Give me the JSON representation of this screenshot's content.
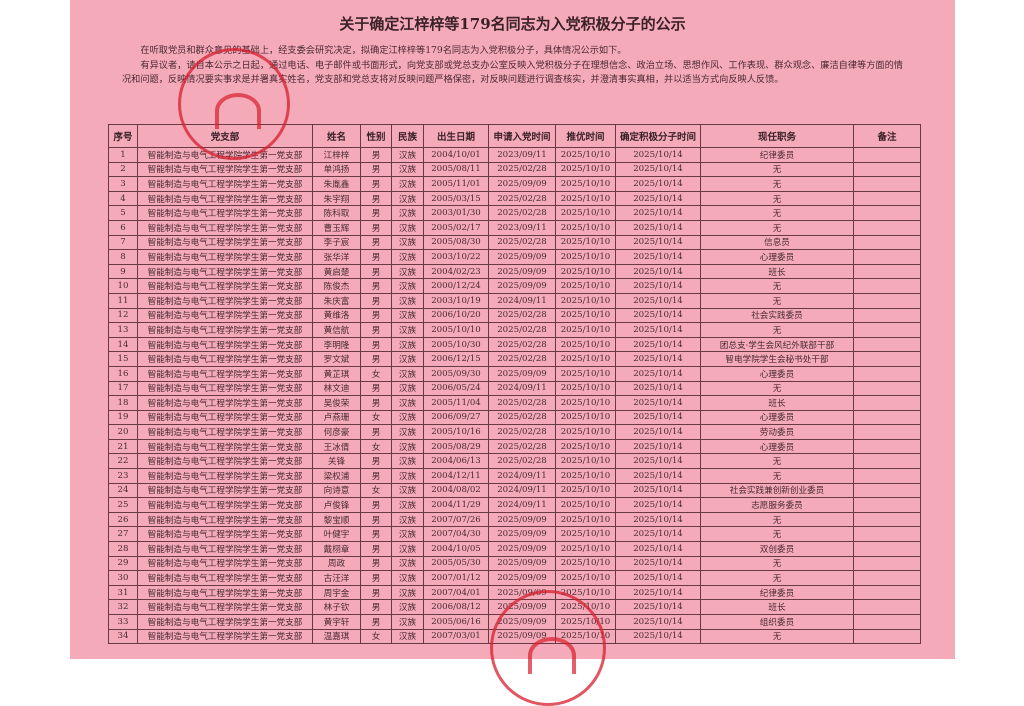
{
  "title": "关于确定江梓梓等179名同志为入党积极分子的公示",
  "intro": [
    "在听取党员和群众意见的基础上，经支委会研究决定，拟确定江梓梓等179名同志为入党积极分子，具体情况公示如下。",
    "有异议者，请自本公示之日起，通过电话、电子邮件或书面形式，向党支部或党总支办公室反映入党积极分子在理想信念、政治立场、思想作风、工作表现、群众观念、廉洁自律等方面的情况和问题，反映情况要实事求是并署真实姓名，党支部和党总支将对反映问题严格保密，对反映问题进行调查核实，并澄清事实真相，并以适当方式向反映人反馈。"
  ],
  "colors": {
    "paper": "#f4aab9",
    "stamp": "#d71e2d"
  },
  "table": {
    "headers": [
      "序号",
      "党支部",
      "姓名",
      "性别",
      "民族",
      "出生日期",
      "申请入党时间",
      "推优时间",
      "确定积极分子时间",
      "现任职务",
      "备注"
    ],
    "branch": "智能制造与电气工程学院学生第一党支部",
    "ethnicity": "汉族",
    "recommend_date": "2025/10/10",
    "confirm_date": "2025/10/14",
    "rows": [
      [
        "1",
        "江梓梓",
        "男",
        "2004/10/01",
        "2023/09/11",
        "纪律委员"
      ],
      [
        "2",
        "单鸿扬",
        "男",
        "2005/08/11",
        "2025/02/28",
        "无"
      ],
      [
        "3",
        "朱胤鑫",
        "男",
        "2005/11/01",
        "2025/09/09",
        "无"
      ],
      [
        "4",
        "朱宇翔",
        "男",
        "2005/03/15",
        "2025/02/28",
        "无"
      ],
      [
        "5",
        "陈科取",
        "男",
        "2003/01/30",
        "2025/02/28",
        "无"
      ],
      [
        "6",
        "曹玉辉",
        "男",
        "2005/02/17",
        "2023/09/11",
        "无"
      ],
      [
        "7",
        "李子宸",
        "男",
        "2005/08/30",
        "2025/02/28",
        "信息员"
      ],
      [
        "8",
        "张华洋",
        "男",
        "2003/10/22",
        "2025/09/09",
        "心理委员"
      ],
      [
        "9",
        "黄启楚",
        "男",
        "2004/02/23",
        "2025/09/09",
        "班长"
      ],
      [
        "10",
        "陈俊杰",
        "男",
        "2000/12/24",
        "2025/09/09",
        "无"
      ],
      [
        "11",
        "朱庆富",
        "男",
        "2003/10/19",
        "2024/09/11",
        "无"
      ],
      [
        "12",
        "黄维洛",
        "男",
        "2006/10/20",
        "2025/02/28",
        "社会实践委员"
      ],
      [
        "13",
        "黄信航",
        "男",
        "2005/10/10",
        "2025/02/28",
        "无"
      ],
      [
        "14",
        "李明隆",
        "男",
        "2005/10/30",
        "2025/02/28",
        "团总支·学生会风纪外联部干部"
      ],
      [
        "15",
        "罗文斌",
        "男",
        "2006/12/15",
        "2025/02/28",
        "智电学院学生会秘书处干部"
      ],
      [
        "16",
        "黄芷琪",
        "女",
        "2005/09/30",
        "2025/09/09",
        "心理委员"
      ],
      [
        "17",
        "林文迪",
        "男",
        "2006/05/24",
        "2024/09/11",
        "无"
      ],
      [
        "18",
        "吴俊荣",
        "男",
        "2005/11/04",
        "2025/02/28",
        "班长"
      ],
      [
        "19",
        "卢燕珊",
        "女",
        "2006/09/27",
        "2025/02/28",
        "心理委员"
      ],
      [
        "20",
        "何彦豪",
        "男",
        "2005/10/16",
        "2025/02/28",
        "劳动委员"
      ],
      [
        "21",
        "王冰倩",
        "女",
        "2005/08/29",
        "2025/02/28",
        "心理委员"
      ],
      [
        "22",
        "关锋",
        "男",
        "2004/06/13",
        "2025/02/28",
        "无"
      ],
      [
        "23",
        "梁权浦",
        "男",
        "2004/12/11",
        "2024/09/11",
        "无"
      ],
      [
        "24",
        "向诗意",
        "女",
        "2004/08/02",
        "2024/09/11",
        "社会实践兼创新创业委员"
      ],
      [
        "25",
        "卢俊锋",
        "男",
        "2004/11/29",
        "2024/09/11",
        "志愿服务委员"
      ],
      [
        "26",
        "黎宝顺",
        "男",
        "2007/07/26",
        "2025/09/09",
        "无"
      ],
      [
        "27",
        "叶健宇",
        "男",
        "2007/04/30",
        "2025/09/09",
        "无"
      ],
      [
        "28",
        "戴栩章",
        "男",
        "2004/10/05",
        "2025/09/09",
        "双创委员"
      ],
      [
        "29",
        "周政",
        "男",
        "2005/05/30",
        "2025/09/09",
        "无"
      ],
      [
        "30",
        "古汪洋",
        "男",
        "2007/01/12",
        "2025/09/09",
        "无"
      ],
      [
        "31",
        "周宇金",
        "男",
        "2007/04/01",
        "2025/09/09",
        "纪律委员"
      ],
      [
        "32",
        "林子钦",
        "男",
        "2006/08/12",
        "2025/09/09",
        "班长"
      ],
      [
        "33",
        "黄宇轩",
        "男",
        "2005/06/16",
        "2025/09/09",
        "组织委员"
      ],
      [
        "34",
        "温嘉琪",
        "女",
        "2007/03/01",
        "2025/09/09",
        "无"
      ]
    ]
  }
}
